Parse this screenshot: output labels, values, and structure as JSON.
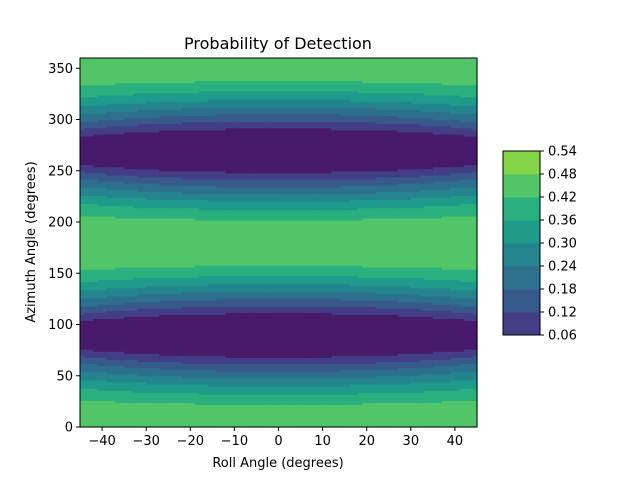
{
  "chart_data": {
    "type": "heatmap",
    "subtype": "filled-contour",
    "title": "Probability of Detection",
    "xlabel": "Roll Angle (degrees)",
    "ylabel": "Azimuth Angle (degrees)",
    "xlim": [
      -45,
      45
    ],
    "ylim": [
      0,
      360
    ],
    "x_ticks": [
      -40,
      -30,
      -20,
      -10,
      0,
      10,
      20,
      30,
      40
    ],
    "x_tick_labels": [
      "−40",
      "−30",
      "−20",
      "−10",
      "0",
      "10",
      "20",
      "30",
      "40"
    ],
    "y_ticks": [
      0,
      50,
      100,
      150,
      200,
      250,
      300,
      350
    ],
    "y_tick_labels": [
      "0",
      "50",
      "100",
      "150",
      "200",
      "250",
      "300",
      "350"
    ],
    "grid": false,
    "colormap": "viridis",
    "colorbar": {
      "placement": "right",
      "levels": [
        0.06,
        0.12,
        0.18,
        0.24,
        0.3,
        0.36,
        0.42,
        0.48,
        0.54
      ],
      "level_labels": [
        "0.06",
        "0.12",
        "0.18",
        "0.24",
        "0.30",
        "0.36",
        "0.42",
        "0.48",
        "0.54"
      ],
      "colors": [
        "#481a6c",
        "#433e85",
        "#38598c",
        "#2d708e",
        "#25858e",
        "#1e9b8a",
        "#2ab07f",
        "#52c569",
        "#86d549",
        "#c2df23",
        "#dde318"
      ]
    },
    "field_description": {
      "max_value": 0.54,
      "max_at_azimuth": [
        0,
        180,
        360
      ],
      "min_at_azimuth": [
        90,
        270
      ],
      "min_value": 0.06
    }
  }
}
